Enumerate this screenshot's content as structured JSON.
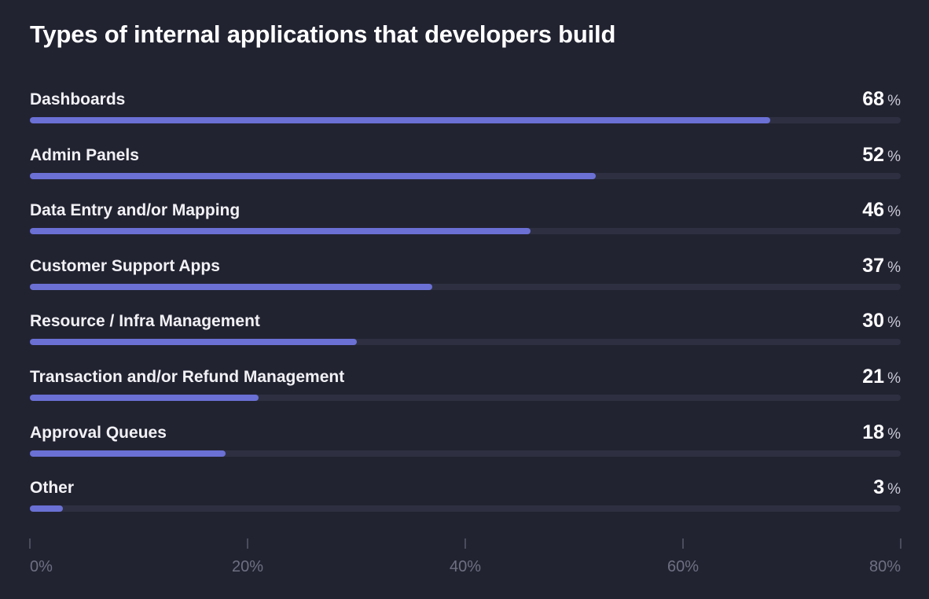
{
  "chart_data": {
    "type": "bar",
    "orientation": "horizontal",
    "title": "Types of internal applications that developers build",
    "categories": [
      "Dashboards",
      "Admin Panels",
      "Data Entry and/or Mapping",
      "Customer Support Apps",
      "Resource / Infra Management",
      "Transaction and/or Refund Management",
      "Approval Queues",
      "Other"
    ],
    "values": [
      68,
      52,
      46,
      37,
      30,
      21,
      18,
      3
    ],
    "unit": "%",
    "xlim": [
      0,
      80
    ],
    "x_ticks": [
      "0%",
      "20%",
      "40%",
      "60%",
      "80%"
    ],
    "grid": false,
    "legend": "none",
    "colors": {
      "background": "#222331",
      "bar": "#6a70d4",
      "track": "#2e3041",
      "tick": "#6e7082"
    }
  }
}
